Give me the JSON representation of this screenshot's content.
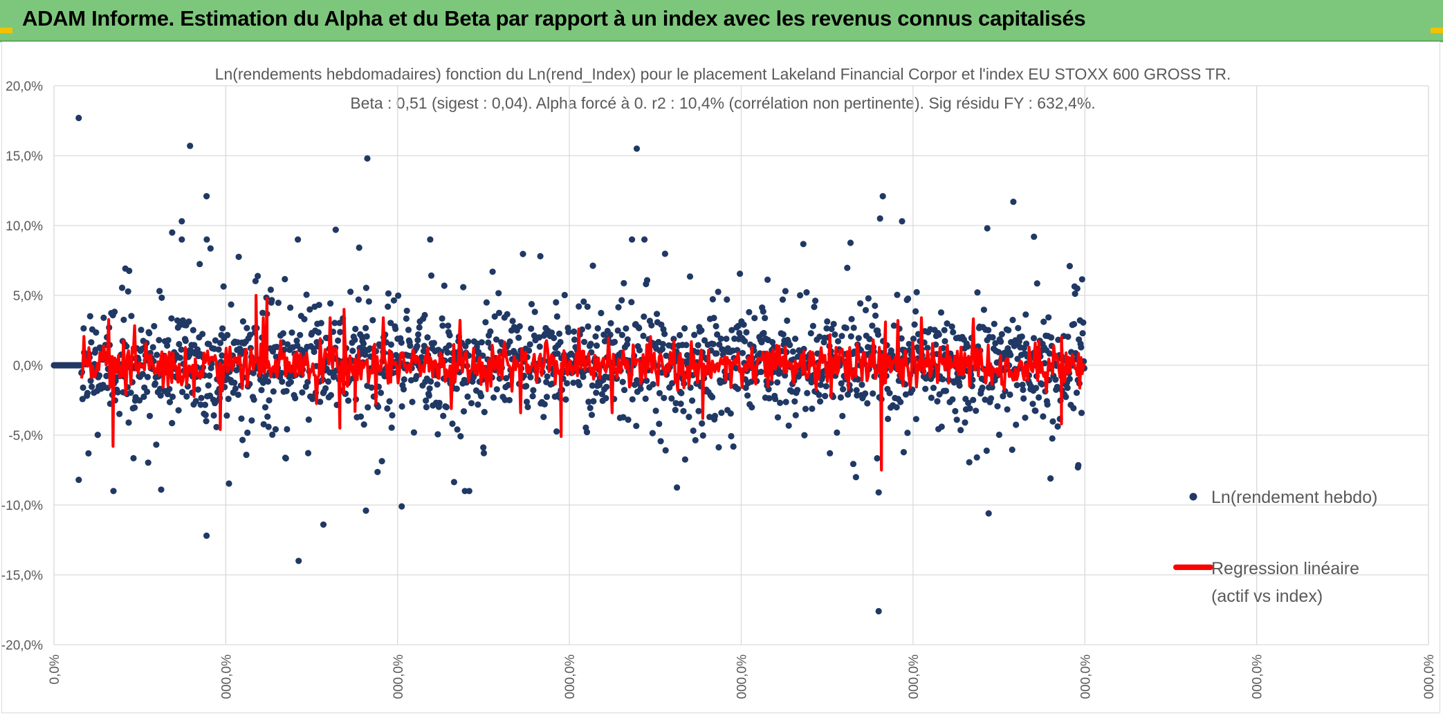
{
  "banner": {
    "title": "ADAM Informe. Estimation du Alpha et du Beta par rapport à un index avec les revenus connus capitalisés",
    "color": "#7dc77c"
  },
  "chart_data": {
    "type": "scatter",
    "title_lines": [
      "Ln(rendements hebdomadaires) fonction du Ln(rend_Index) pour le placement Lakeland Financial Corpor et l'index EU STOXX 600 GROSS TR.",
      "Beta : 0,51 (sigest : 0,04). Alpha forcé à 0. r2 : 10,4% (corrélation non pertinente). Sig résidu FY : 632,4%."
    ],
    "stats": {
      "beta": 0.51,
      "beta_sigest": 0.04,
      "alpha": 0,
      "r2_pct": 10.4,
      "sig_residu_fy_pct": 632.4
    },
    "ylim": [
      -20,
      20
    ],
    "xlim": [
      0,
      1
    ],
    "y_ticks": [
      20,
      15,
      10,
      5,
      0,
      -5,
      -10,
      -15,
      -20
    ],
    "y_tick_labels": [
      "20,0%",
      "15,0%",
      "10,0%",
      "5,0%",
      "0,0%",
      "-5,0%",
      "-10,0%",
      "-15,0%",
      "-20,0%"
    ],
    "x_tick_labels": [
      "0,0%",
      "000,0%",
      "000,0%",
      "000,0%",
      "000,0%",
      "000,0%",
      "000,0%",
      "000,0%",
      "000,0%"
    ],
    "grid": true,
    "legend_position": "right",
    "series": [
      {
        "name": "Ln(rendement hebdo)",
        "kind": "scatter",
        "color": "#203864",
        "count": 1850,
        "x_range": [
          0.0,
          0.75
        ],
        "flat_start_end": 0.02
      },
      {
        "name": "Regression linéaire (actif vs index)",
        "kind": "line",
        "color": "#ff0000"
      }
    ],
    "legend": [
      {
        "label_lines": [
          "Ln(rendement hebdo)"
        ],
        "kind": "scatter"
      },
      {
        "label_lines": [
          "Regression linéaire",
          "(actif vs index)"
        ],
        "kind": "line"
      }
    ],
    "notable_points": [
      {
        "x": 0.018,
        "y": 17.7
      },
      {
        "x": 0.018,
        "y": -8.2
      },
      {
        "x": 0.099,
        "y": 15.7
      },
      {
        "x": 0.111,
        "y": 12.1
      },
      {
        "x": 0.111,
        "y": -12.2
      },
      {
        "x": 0.093,
        "y": 10.3
      },
      {
        "x": 0.086,
        "y": 9.5
      },
      {
        "x": 0.205,
        "y": 9.7
      },
      {
        "x": 0.228,
        "y": 14.8
      },
      {
        "x": 0.196,
        "y": -11.4
      },
      {
        "x": 0.178,
        "y": -14.0
      },
      {
        "x": 0.227,
        "y": -10.4
      },
      {
        "x": 0.253,
        "y": -10.1
      },
      {
        "x": 0.424,
        "y": 15.5
      },
      {
        "x": 0.603,
        "y": 12.1
      },
      {
        "x": 0.601,
        "y": 10.5
      },
      {
        "x": 0.617,
        "y": 10.3
      },
      {
        "x": 0.6,
        "y": -9.1
      },
      {
        "x": 0.6,
        "y": -17.6
      },
      {
        "x": 0.698,
        "y": 11.7
      },
      {
        "x": 0.679,
        "y": 9.8
      },
      {
        "x": 0.68,
        "y": -10.6
      },
      {
        "x": 0.713,
        "y": 9.2
      },
      {
        "x": 0.725,
        "y": -8.1
      },
      {
        "x": 0.745,
        "y": -7.3
      },
      {
        "x": 0.739,
        "y": 7.1
      }
    ],
    "regression_spikes": [
      {
        "x": 0.043,
        "y": -5.8
      },
      {
        "x": 0.121,
        "y": -4.6
      },
      {
        "x": 0.147,
        "y": 5.0
      },
      {
        "x": 0.155,
        "y": 4.8
      },
      {
        "x": 0.208,
        "y": -4.5
      },
      {
        "x": 0.211,
        "y": 4.0
      },
      {
        "x": 0.219,
        "y": -3.3
      },
      {
        "x": 0.369,
        "y": -5.1
      },
      {
        "x": 0.472,
        "y": -3.8
      },
      {
        "x": 0.602,
        "y": -7.5
      },
      {
        "x": 0.605,
        "y": 3.1
      },
      {
        "x": 0.733,
        "y": -4.2
      },
      {
        "x": 0.733,
        "y": 2.0
      }
    ]
  }
}
